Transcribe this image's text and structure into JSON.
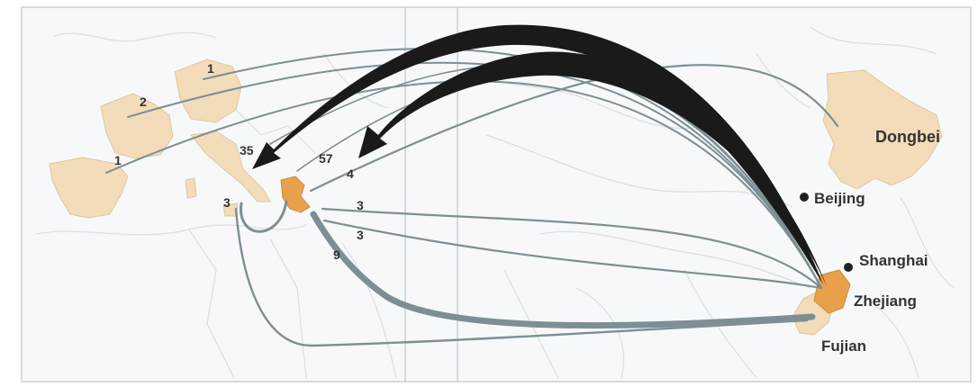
{
  "colors": {
    "background": "#ffffff",
    "land": "#f6f6f6",
    "border": "#d9dee8",
    "frame": "#c9cfdd",
    "origin_fill": "#f2dcb9",
    "source_fill": "#e8a04a",
    "thin_flow": "#7d8f94",
    "thick_flow": "#1a1a1a",
    "label": "#333333"
  },
  "places": {
    "dongbei": "Dongbei",
    "beijing": "Beijing",
    "shanghai": "Shanghai",
    "zhejiang": "Zhejiang",
    "fujian": "Fujian"
  },
  "flows": [
    {
      "id": "to-italy",
      "value": "35"
    },
    {
      "id": "to-greece",
      "value": "57"
    },
    {
      "id": "greece-4",
      "value": "4"
    },
    {
      "id": "east-med-3a",
      "value": "3"
    },
    {
      "id": "east-med-3b",
      "value": "3"
    },
    {
      "id": "to-north-africa",
      "value": "9"
    },
    {
      "id": "to-italy-south",
      "value": "3"
    },
    {
      "id": "to-germany",
      "value": "1"
    },
    {
      "id": "to-france",
      "value": "2"
    },
    {
      "id": "to-spain",
      "value": "1"
    }
  ]
}
